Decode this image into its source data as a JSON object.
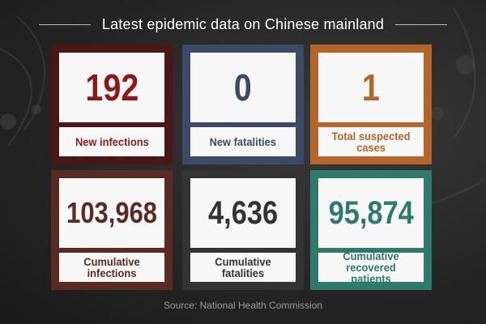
{
  "title": "Latest epidemic data on Chinese mainland",
  "cards": [
    {
      "value": "192",
      "label": "New infections",
      "frame_color": "#4a1717",
      "text_color": "#8b1a1a"
    },
    {
      "value": "0",
      "label": "New fatalities",
      "frame_color": "#3b4a66",
      "text_color": "#3b4a66"
    },
    {
      "value": "1",
      "label": "Total suspected cases",
      "frame_color": "#b5642c",
      "text_color": "#b5642c"
    },
    {
      "value": "103,968",
      "label": "Cumulative infections",
      "frame_color": "#5a2a25",
      "text_color": "#5a2a25"
    },
    {
      "value": "4,636",
      "label": "Cumulative fatalities",
      "frame_color": "#333333",
      "text_color": "#333333"
    },
    {
      "value": "95,874",
      "label": "Cumulative recovered patients",
      "frame_color": "#2f7a6a",
      "text_color": "#2f7a6a"
    }
  ],
  "source": "Source: National Health Commission"
}
